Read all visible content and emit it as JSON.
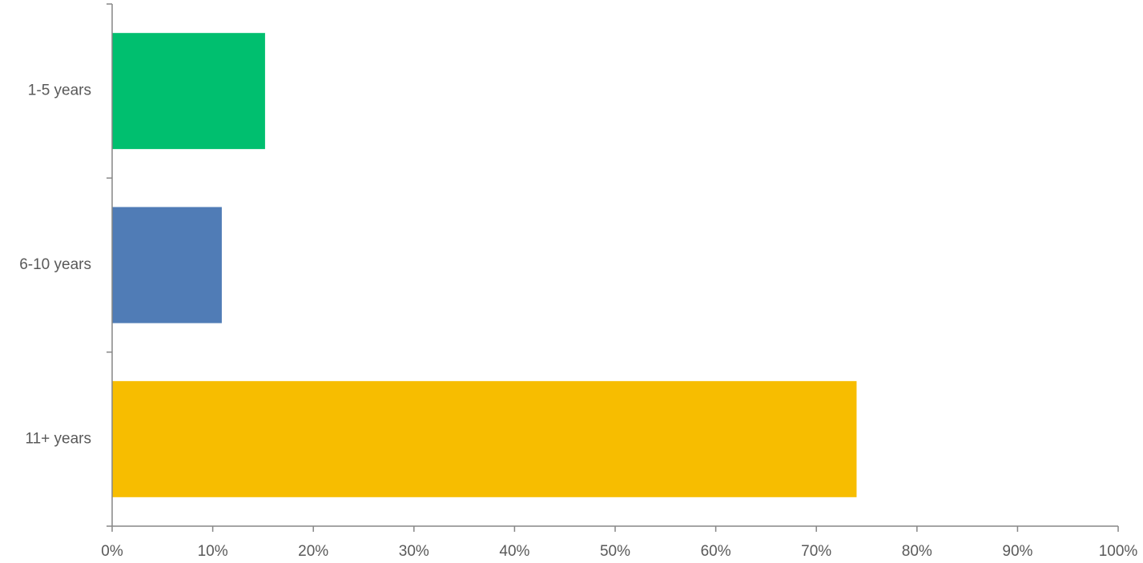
{
  "chart_data": {
    "type": "bar",
    "orientation": "horizontal",
    "categories": [
      "1-5 years",
      "6-10 years",
      "11+ years"
    ],
    "values": [
      15.2,
      10.9,
      74.0
    ],
    "colors": [
      "#00BF6F",
      "#507CB6",
      "#F7BD00"
    ],
    "xlim": [
      0,
      100
    ],
    "x_ticks": [
      "0%",
      "10%",
      "20%",
      "30%",
      "40%",
      "50%",
      "60%",
      "70%",
      "80%",
      "90%",
      "100%"
    ],
    "title": "",
    "xlabel": "",
    "ylabel": "",
    "grid": false,
    "legend": "none"
  }
}
